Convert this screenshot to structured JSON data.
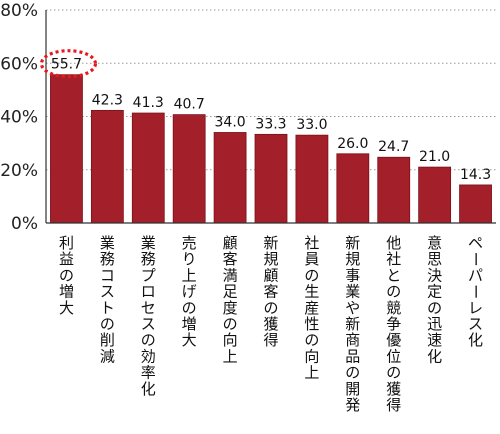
{
  "chart_data": {
    "type": "bar",
    "title": "",
    "xlabel": "",
    "ylabel": "",
    "ylim": [
      0,
      80
    ],
    "yticks": [
      "0%",
      "20%",
      "40%",
      "60%",
      "80%"
    ],
    "ytick_values": [
      0,
      20,
      40,
      60,
      80
    ],
    "grid": "horizontal-dotted",
    "categories": [
      "利益の増大",
      "業務コストの削減",
      "業務プロセスの効率化",
      "売り上げの増大",
      "顧客満足度の向上",
      "新規顧客の獲得",
      "社員の生産性の向上",
      "新規事業や新商品の開発",
      "他社との競争優位の獲得",
      "意思決定の迅速化",
      "ペーパーレス化"
    ],
    "values": [
      55.7,
      42.3,
      41.3,
      40.7,
      34.0,
      33.3,
      33.0,
      26.0,
      24.7,
      21.0,
      14.3
    ],
    "value_labels": [
      "55.7",
      "42.3",
      "41.3",
      "40.7",
      "34.0",
      "33.3",
      "33.0",
      "26.0",
      "24.7",
      "21.0",
      "14.3"
    ],
    "highlight_index": 0,
    "colors": {
      "bar": "#a31f2a",
      "bar_edge": "#7a1219",
      "highlight": "#e8191e",
      "axis": "#333333",
      "grid": "#9a9a9a"
    }
  }
}
